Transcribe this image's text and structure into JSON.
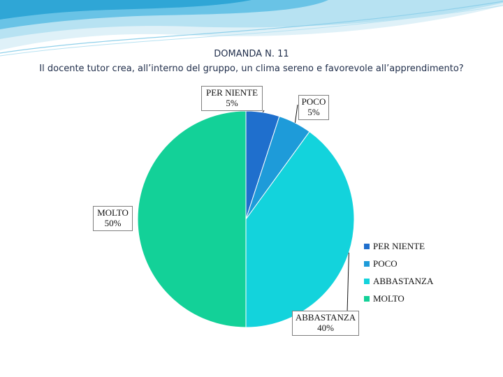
{
  "chart_data": {
    "type": "pie",
    "title": "DOMANDA N. 11",
    "subtitle": "Il docente tutor crea, all’interno del gruppo, un clima sereno e favorevole all’apprendimento?",
    "categories": [
      "PER NIENTE",
      "POCO",
      "ABBASTANZA",
      "MOLTO"
    ],
    "values": [
      5,
      5,
      40,
      50
    ],
    "value_labels": [
      "5%",
      "5%",
      "40%",
      "50%"
    ],
    "colors": [
      "#1f6fcd",
      "#1e9bd9",
      "#13d3dc",
      "#13d198"
    ],
    "legend_position": "right",
    "start_angle_degrees_clockwise_from_top": 0
  },
  "decoration": {
    "banner_colors": [
      "#cfe9f4",
      "#8fd0ea",
      "#2fa6d6"
    ]
  }
}
